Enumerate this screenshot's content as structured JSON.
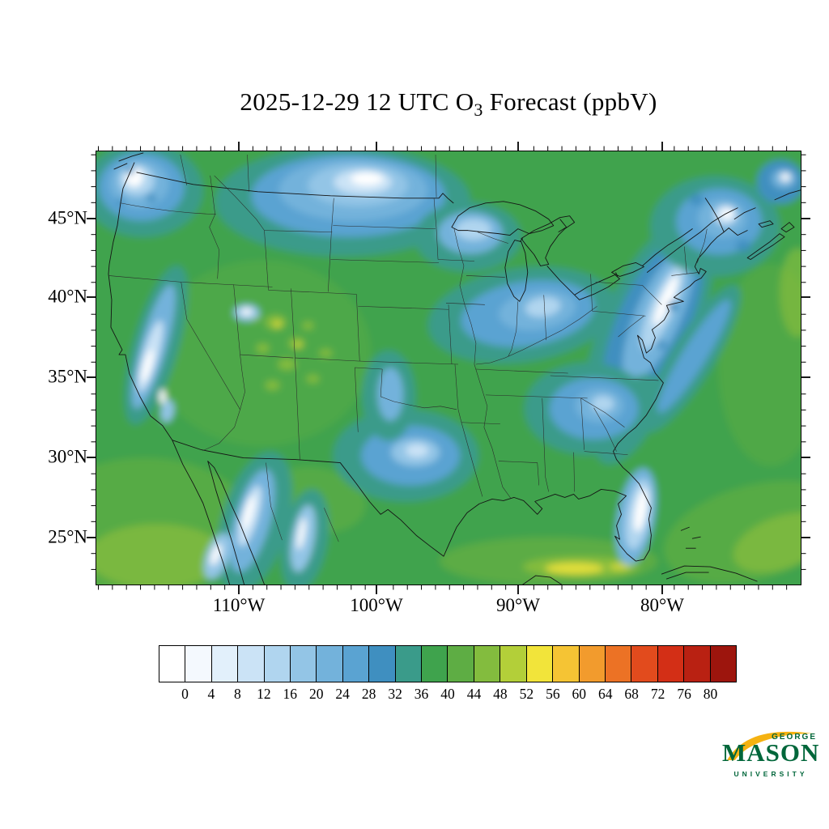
{
  "title": {
    "prefix": "2025-12-29 12 UTC O",
    "sub": "3",
    "suffix": " Forecast (ppbV)"
  },
  "axes": {
    "lat_labels": [
      "45°N",
      "40°N",
      "35°N",
      "30°N",
      "25°N"
    ],
    "lon_labels": [
      "110°W",
      "100°W",
      "90°W",
      "80°W"
    ]
  },
  "colorbar": {
    "tick_labels": [
      "0",
      "4",
      "8",
      "12",
      "16",
      "20",
      "24",
      "28",
      "32",
      "36",
      "40",
      "44",
      "48",
      "52",
      "56",
      "60",
      "64",
      "68",
      "72",
      "76",
      "80"
    ],
    "colors": [
      "#ffffff",
      "#f4f9fe",
      "#e2f0fb",
      "#cbe3f6",
      "#b0d5ef",
      "#93c5e6",
      "#73b2db",
      "#5aa3d2",
      "#3f8fc0",
      "#3a9b8a",
      "#3fa34d",
      "#5ead44",
      "#83bc3e",
      "#b3cf39",
      "#f2e43a",
      "#f5c434",
      "#f29b2d",
      "#ec7225",
      "#e24b1d",
      "#d32f16",
      "#b92112",
      "#9d150d"
    ]
  },
  "map_colors": {
    "background_green": "#3fa34d"
  },
  "logo": {
    "line1": "GEORGE",
    "line2": "MASON",
    "line3": "UNIVERSITY",
    "green": "#00663a",
    "gold": "#f5b211"
  },
  "chart_data": {
    "type": "heatmap",
    "title": "2025-12-29 12 UTC O3 Forecast (ppbV)",
    "variable": "O3 (ozone) mixing ratio forecast",
    "units": "ppbV",
    "valid_time": "2025-12-29 12 UTC",
    "region": "Contiguous United States with parts of Canada, Mexico, Gulf of Mexico and western Atlantic",
    "x_axis": {
      "label": "longitude",
      "tick_labels": [
        "110°W",
        "100°W",
        "90°W",
        "80°W"
      ]
    },
    "y_axis": {
      "label": "latitude",
      "tick_labels": [
        "45°N",
        "40°N",
        "35°N",
        "30°N",
        "25°N"
      ]
    },
    "colorbar": {
      "levels": [
        0,
        4,
        8,
        12,
        16,
        20,
        24,
        28,
        32,
        36,
        40,
        44,
        48,
        52,
        56,
        60,
        64,
        68,
        72,
        76,
        80
      ],
      "orientation": "horizontal",
      "position": "bottom"
    },
    "approx_values_by_region": [
      {
        "region": "Pacific Northwest / Cascades (WA)",
        "o3_ppbv": "0-16"
      },
      {
        "region": "Northern Rockies and Montana/Dakotas plains",
        "o3_ppbv": "4-24"
      },
      {
        "region": "Sierra Nevada, California",
        "o3_ppbv": "0-16"
      },
      {
        "region": "Great Basin / Colorado Plateau",
        "o3_ppbv": "32-44 patchy"
      },
      {
        "region": "Texas and southern plains",
        "o3_ppbv": "12-28"
      },
      {
        "region": "Midwest / Ohio Valley",
        "o3_ppbv": "16-28"
      },
      {
        "region": "Appalachians and Northeast corridor",
        "o3_ppbv": "0-24"
      },
      {
        "region": "Southeast (GA/AL/TN)",
        "o3_ppbv": "16-28"
      },
      {
        "region": "Florida peninsula",
        "o3_ppbv": "4-20"
      },
      {
        "region": "Sierra Madre ranges, Mexico",
        "o3_ppbv": "0-20"
      },
      {
        "region": "Background land and oceans",
        "o3_ppbv": "32-40"
      },
      {
        "region": "Gulf of Mexico band",
        "o3_ppbv": "40-48"
      }
    ],
    "grid": false
  }
}
